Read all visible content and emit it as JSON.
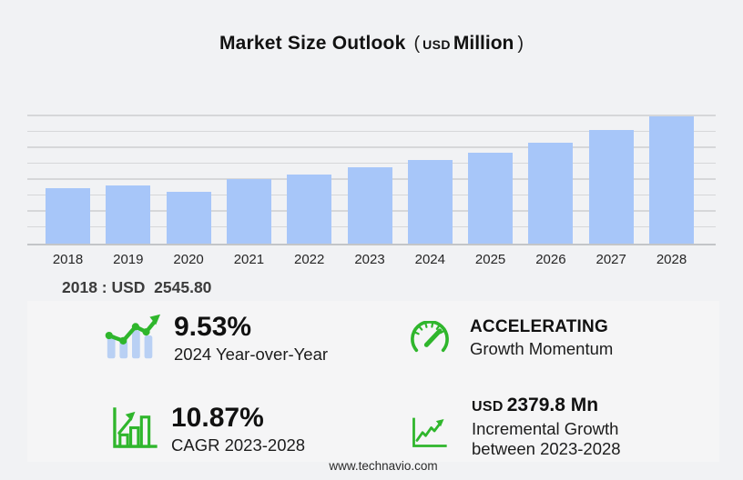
{
  "title": {
    "main": "Market Size Outlook",
    "paren_open": "(",
    "unit_currency": "USD",
    "unit_scale": "Million",
    "paren_close": ")"
  },
  "chart_data": {
    "type": "bar",
    "title": "Market Size Outlook (USD Million)",
    "categories": [
      "2018",
      "2019",
      "2020",
      "2021",
      "2022",
      "2023",
      "2024",
      "2025",
      "2026",
      "2027",
      "2028"
    ],
    "values": [
      2545.8,
      2700,
      2410,
      2980,
      3200,
      3525,
      3861,
      4210,
      4670,
      5240,
      5905
    ],
    "xlabel": "",
    "ylabel": "",
    "ylim": [
      0,
      6640
    ],
    "grid": "horizontal",
    "legend": "none",
    "bar_color": "#a7c6f9"
  },
  "first_year_note": "2018 : USD  2545.80",
  "stats": [
    {
      "icon": "bar-trend-up-icon",
      "value": "9.53%",
      "label": "2024 Year-over-Year"
    },
    {
      "icon": "speedometer-icon",
      "value": "ACCELERATING",
      "label": "Growth Momentum"
    },
    {
      "icon": "bar-chart-growth-icon",
      "value": "10.87%",
      "label": "CAGR 2023-2028"
    },
    {
      "icon": "line-growth-icon",
      "value_prefix": "USD",
      "value": "2379.8 Mn",
      "label": "Incremental Growth",
      "label2": "between 2023-2028"
    }
  ],
  "footer": {
    "website": "www.technavio.com"
  },
  "colors": {
    "page_background": "#f1f2f4",
    "bar_fill": "#a7c6f9",
    "accent_green": "#2fb62c",
    "icon_bar_blue": "#b9d0f4"
  }
}
